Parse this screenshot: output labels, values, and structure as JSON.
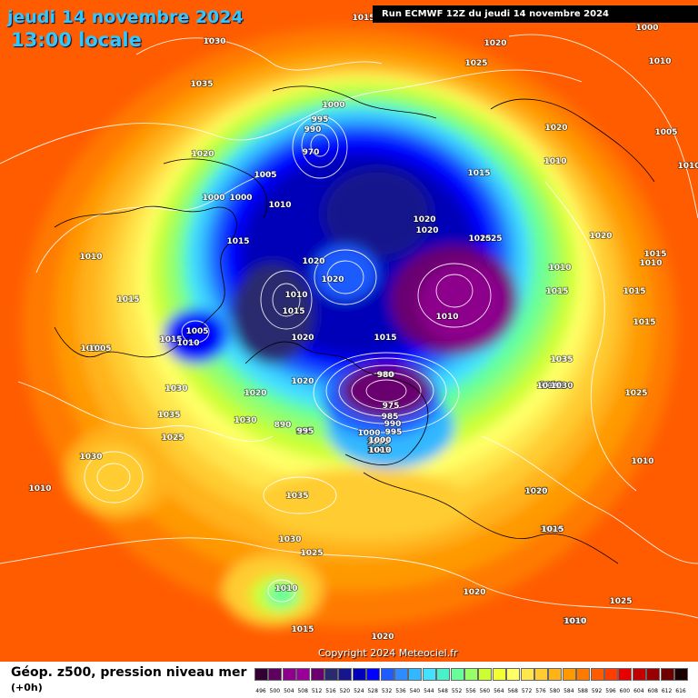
{
  "title": {
    "date": "jeudi 14 novembre 2024",
    "time": "13:00 locale"
  },
  "run_label": "Run ECMWF 12Z du jeudi 14 novembre 2024",
  "copyright": "Copyright 2024 Meteociel.fr",
  "footer": {
    "title": "Géop. z500, pression niveau mer",
    "subtitle": "(+0h)"
  },
  "legend": {
    "ticks": [
      "496",
      "500",
      "504",
      "508",
      "512",
      "516",
      "520",
      "524",
      "528",
      "532",
      "536",
      "540",
      "544",
      "548",
      "552",
      "556",
      "560",
      "564",
      "568",
      "572",
      "576",
      "580",
      "584",
      "588",
      "592",
      "596",
      "600",
      "604",
      "608",
      "612",
      "616"
    ],
    "colors": [
      "#330033",
      "#5e005e",
      "#8c008c",
      "#990099",
      "#6b0070",
      "#2a2a6e",
      "#16168c",
      "#0000b8",
      "#0000ff",
      "#1e5cff",
      "#2e8cff",
      "#33b8ff",
      "#44e0ff",
      "#4cf0c8",
      "#66ff99",
      "#99ff66",
      "#ccff33",
      "#f2ff33",
      "#ffff66",
      "#ffe64d",
      "#ffcc33",
      "#ffb31a",
      "#ff9900",
      "#ff7a00",
      "#ff5c00",
      "#ff3d00",
      "#e60000",
      "#c20000",
      "#990000",
      "#6e0000",
      "#1a0000"
    ]
  },
  "pressure_labels": [
    "1015",
    "1030",
    "1035",
    "1020",
    "1005",
    "1000",
    "1000",
    "1010",
    "1015",
    "1020",
    "1020",
    "1015",
    "1010",
    "1005",
    "1015",
    "1010",
    "1030",
    "1035",
    "1025",
    "995",
    "1000",
    "1005",
    "1010",
    "1030",
    "890",
    "995",
    "1020",
    "1020",
    "1010",
    "1015",
    "1010",
    "1010",
    "1030",
    "1035",
    "1025",
    "1030",
    "1010",
    "1015",
    "1020",
    "1000",
    "995",
    "990",
    "970",
    "980",
    "1005",
    "1010",
    "1020",
    "1025",
    "1020",
    "1020",
    "1010",
    "1015",
    "1010",
    "1025",
    "1035",
    "1030",
    "1025",
    "1020",
    "1015",
    "1020",
    "1000",
    "1010",
    "1005",
    "1010",
    "1015",
    "1010",
    "1015",
    "1020",
    "1015",
    "1010",
    "1025",
    "1015",
    "1020",
    "1015",
    "1010",
    "1015",
    "1010",
    "1020",
    "1025",
    "1010",
    "1030",
    "980",
    "975",
    "985",
    "990",
    "995",
    "1000",
    "1005",
    "1010",
    "1010",
    "1030",
    "1020",
    "1015",
    "1010",
    "1005"
  ]
}
